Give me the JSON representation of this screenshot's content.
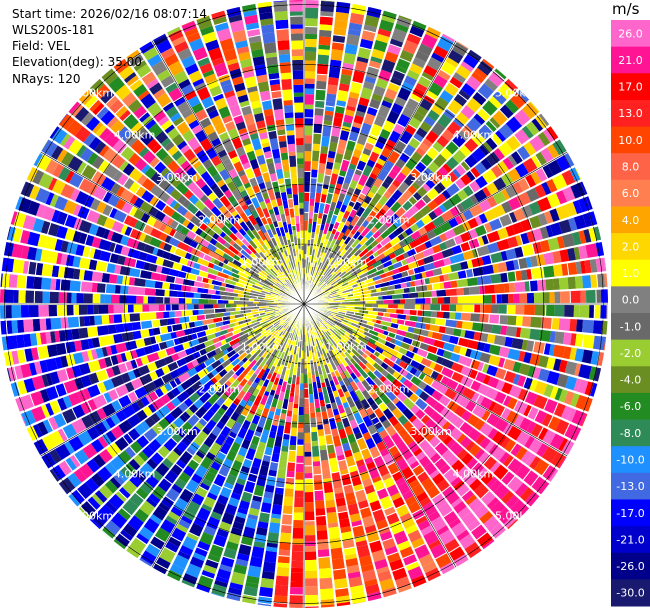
{
  "header": {
    "start_time": "Start time: 2026/02/16 08:07:14",
    "instrument": "WLS200s-181",
    "field": "Field: VEL",
    "elevation": "Elevation(deg): 35.00",
    "nrays": "NRays: 120"
  },
  "range_rings": {
    "labels": [
      "1.00km",
      "2.00km",
      "3.00km",
      "4.00km",
      "5.00km"
    ],
    "values_km": [
      1,
      2,
      3,
      4,
      5
    ]
  },
  "plot": {
    "n_rays": 120,
    "max_range_km": 5.0,
    "background_gap_color": "#ffffff"
  },
  "colorbar": {
    "unit": "m/s",
    "ticks": [
      "26.0",
      "21.0",
      "17.0",
      "13.0",
      "10.0",
      "8.0",
      "6.0",
      "4.0",
      "2.0",
      "1.0",
      "0.0",
      "-1.0",
      "-2.0",
      "-4.0",
      "-6.0",
      "-8.0",
      "-10.0",
      "-13.0",
      "-17.0",
      "-21.0",
      "-26.0",
      "-30.0"
    ],
    "colors": [
      "#ff66cc",
      "#ff1493",
      "#ff0000",
      "#ff2020",
      "#ff4500",
      "#ff6347",
      "#ff7f50",
      "#ffa500",
      "#ffd700",
      "#ffff00",
      "#808080",
      "#696969",
      "#9acd32",
      "#6b8e23",
      "#228b22",
      "#2e8b57",
      "#1e90ff",
      "#4169e1",
      "#0000ff",
      "#0000cd",
      "#00008b",
      "#191970"
    ]
  }
}
